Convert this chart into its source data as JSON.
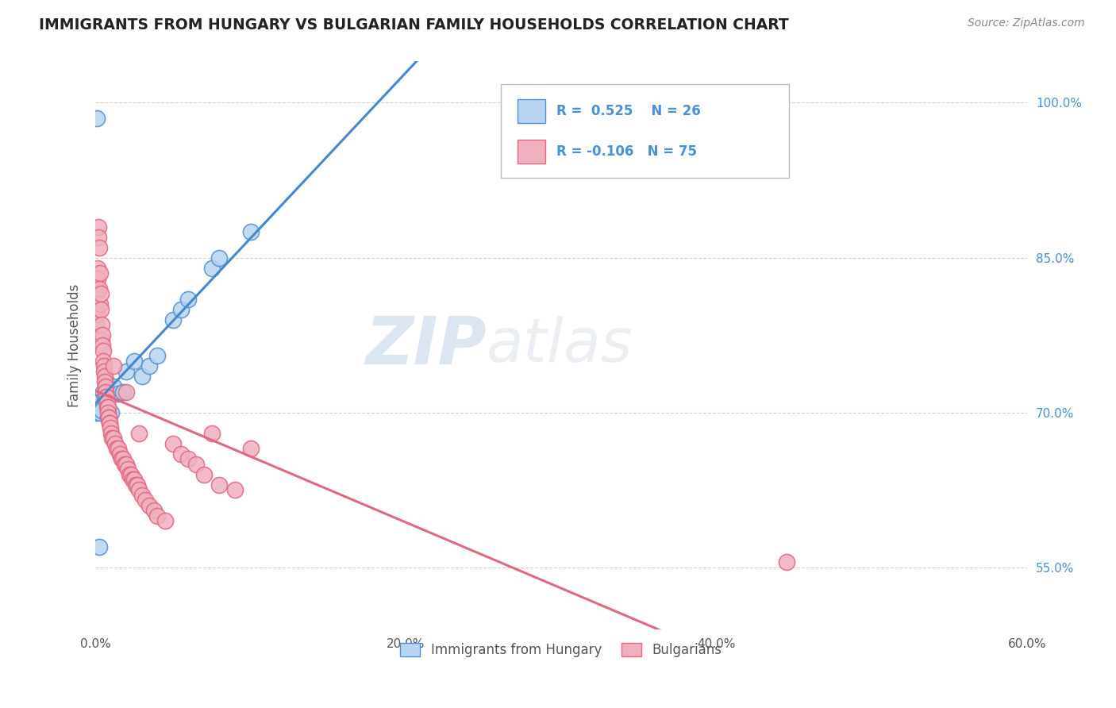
{
  "title": "IMMIGRANTS FROM HUNGARY VS BULGARIAN FAMILY HOUSEHOLDS CORRELATION CHART",
  "source": "Source: ZipAtlas.com",
  "ylabel": "Family Households",
  "watermark_zip": "ZIP",
  "watermark_atlas": "atlas",
  "xlim": [
    0.0,
    60.0
  ],
  "ylim": [
    49.0,
    104.0
  ],
  "yticks": [
    55.0,
    70.0,
    85.0,
    100.0
  ],
  "xticks": [
    0.0,
    20.0,
    40.0,
    60.0
  ],
  "xtick_labels": [
    "0.0%",
    "20.0%",
    "40.0%",
    "60.0%"
  ],
  "ytick_labels": [
    "55.0%",
    "70.0%",
    "85.0%",
    "100.0%"
  ],
  "hungary_color": "#b8d4f0",
  "hungary_edge": "#5090d0",
  "hungary_line": "#4488cc",
  "bulg_color": "#f0b0c0",
  "bulg_edge": "#e06880",
  "bulg_line": "#e06880",
  "hungary_R": 0.525,
  "hungary_N": 26,
  "bulg_R": -0.106,
  "bulg_N": 75,
  "hungary_x": [
    0.05,
    0.1,
    0.15,
    0.2,
    0.3,
    0.4,
    0.5,
    0.6,
    0.7,
    0.8,
    1.0,
    1.2,
    1.5,
    1.8,
    2.0,
    2.5,
    3.0,
    3.5,
    4.0,
    5.0,
    5.5,
    6.0,
    7.5,
    8.0,
    10.0,
    0.25
  ],
  "hungary_y": [
    70.0,
    98.5,
    70.5,
    71.0,
    70.0,
    70.2,
    72.0,
    71.5,
    73.0,
    69.5,
    70.0,
    72.5,
    71.8,
    72.0,
    74.0,
    75.0,
    73.5,
    74.5,
    75.5,
    79.0,
    80.0,
    81.0,
    84.0,
    85.0,
    87.5,
    57.0
  ],
  "bulg_x": [
    0.05,
    0.08,
    0.1,
    0.12,
    0.15,
    0.18,
    0.2,
    0.22,
    0.25,
    0.28,
    0.3,
    0.32,
    0.35,
    0.38,
    0.4,
    0.42,
    0.45,
    0.48,
    0.5,
    0.52,
    0.55,
    0.58,
    0.6,
    0.62,
    0.65,
    0.68,
    0.7,
    0.72,
    0.75,
    0.78,
    0.8,
    0.82,
    0.85,
    0.88,
    0.9,
    0.92,
    0.95,
    1.0,
    1.1,
    1.2,
    1.3,
    1.4,
    1.5,
    1.6,
    1.7,
    1.8,
    1.9,
    2.0,
    2.1,
    2.2,
    2.3,
    2.4,
    2.5,
    2.6,
    2.7,
    2.8,
    3.0,
    3.2,
    3.5,
    3.8,
    4.0,
    4.5,
    5.0,
    5.5,
    6.0,
    6.5,
    7.0,
    8.0,
    9.0,
    10.0,
    2.0,
    2.8,
    1.2,
    7.5,
    44.5
  ],
  "bulg_y": [
    78.5,
    80.0,
    82.0,
    79.5,
    84.0,
    83.0,
    88.0,
    87.0,
    86.0,
    82.0,
    83.5,
    80.5,
    81.5,
    80.0,
    78.5,
    77.0,
    77.5,
    76.5,
    76.0,
    75.0,
    74.5,
    74.0,
    73.5,
    73.0,
    72.5,
    72.0,
    71.5,
    71.5,
    71.0,
    70.5,
    70.5,
    70.0,
    69.5,
    69.5,
    69.0,
    69.0,
    68.5,
    68.0,
    67.5,
    67.5,
    67.0,
    66.5,
    66.5,
    66.0,
    65.5,
    65.5,
    65.0,
    65.0,
    64.5,
    64.0,
    64.0,
    63.5,
    63.5,
    63.0,
    63.0,
    62.5,
    62.0,
    61.5,
    61.0,
    60.5,
    60.0,
    59.5,
    67.0,
    66.0,
    65.5,
    65.0,
    64.0,
    63.0,
    62.5,
    66.5,
    72.0,
    68.0,
    74.5,
    68.0,
    55.5
  ],
  "background_color": "#ffffff",
  "grid_color": "#cccccc"
}
